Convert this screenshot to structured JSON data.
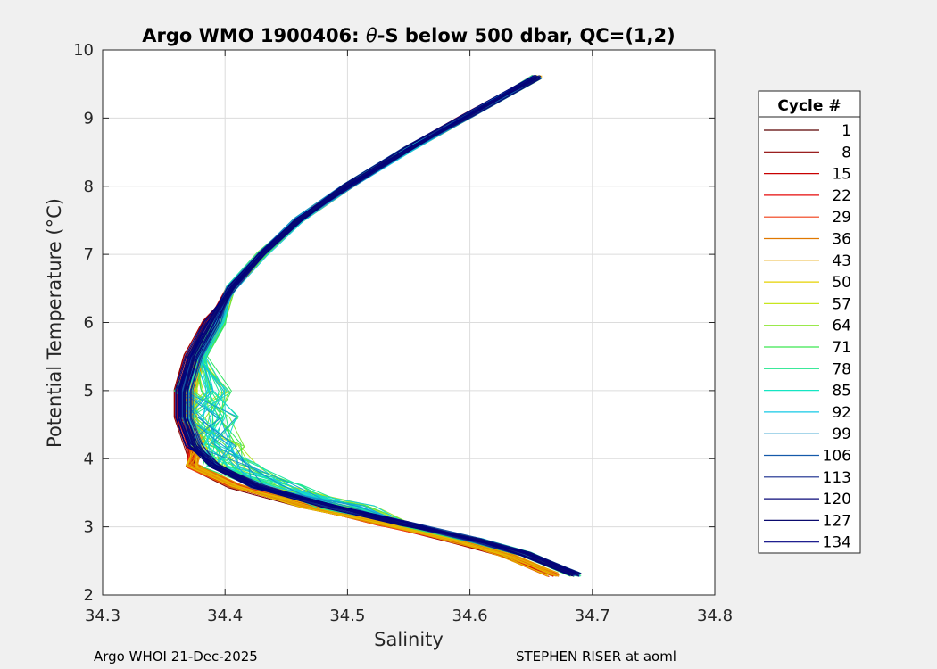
{
  "chart_data": {
    "type": "line",
    "title": "Argo WMO 1900406: θ-S below 500 dbar,  QC=(1,2)",
    "title_prefix": "Argo WMO 1900406: ",
    "title_theta": "θ",
    "title_suffix": "-S below 500 dbar,  QC=(1,2)",
    "xlabel": "Salinity",
    "ylabel": "Potential Temperature (°C)",
    "xlim": [
      34.3,
      34.8
    ],
    "ylim": [
      2,
      10
    ],
    "xticks": [
      34.3,
      34.4,
      34.5,
      34.6,
      34.7,
      34.8
    ],
    "yticks": [
      2,
      3,
      4,
      5,
      6,
      7,
      8,
      9,
      10
    ],
    "grid": true,
    "legend": {
      "title": "Cycle #",
      "placement": "outside-right",
      "entries": [
        {
          "label": "1",
          "color": "#5a0000"
        },
        {
          "label": "8",
          "color": "#8c0000"
        },
        {
          "label": "15",
          "color": "#c80000"
        },
        {
          "label": "22",
          "color": "#e60a0a"
        },
        {
          "label": "29",
          "color": "#f03c14"
        },
        {
          "label": "36",
          "color": "#e07800"
        },
        {
          "label": "43",
          "color": "#e6a500"
        },
        {
          "label": "50",
          "color": "#e6d200"
        },
        {
          "label": "57",
          "color": "#c8e61e"
        },
        {
          "label": "64",
          "color": "#8ce632"
        },
        {
          "label": "71",
          "color": "#3ce650"
        },
        {
          "label": "78",
          "color": "#1ee68c"
        },
        {
          "label": "85",
          "color": "#14e6c3"
        },
        {
          "label": "92",
          "color": "#14c8e6"
        },
        {
          "label": "99",
          "color": "#1490c8"
        },
        {
          "label": "106",
          "color": "#145aaa"
        },
        {
          "label": "113",
          "color": "#14288c"
        },
        {
          "label": "120",
          "color": "#0a0a78"
        },
        {
          "label": "127",
          "color": "#0a0a6e"
        },
        {
          "label": "134",
          "color": "#000080"
        }
      ]
    },
    "series_template": [
      [
        34.655,
        9.6
      ],
      [
        34.6,
        9.05
      ],
      [
        34.55,
        8.55
      ],
      [
        34.5,
        8.0
      ],
      [
        34.46,
        7.5
      ],
      [
        34.43,
        7.0
      ],
      [
        34.405,
        6.5
      ],
      [
        34.385,
        6.0
      ],
      [
        34.37,
        5.5
      ],
      [
        34.362,
        5.0
      ],
      [
        34.362,
        4.6
      ],
      [
        34.37,
        4.2
      ],
      [
        34.385,
        3.9
      ],
      [
        34.42,
        3.6
      ],
      [
        34.48,
        3.3
      ],
      [
        34.54,
        3.05
      ],
      [
        34.6,
        2.8
      ],
      [
        34.64,
        2.6
      ],
      [
        34.68,
        2.3
      ]
    ],
    "series_note": "Approximate theta-S profile shape shared by all cycles; each cycle shifts in salinity by cycle-dependent offsets."
  },
  "footer": {
    "left": "Argo WHOI 21-Dec-2025",
    "right": "STEPHEN RISER at aoml"
  }
}
